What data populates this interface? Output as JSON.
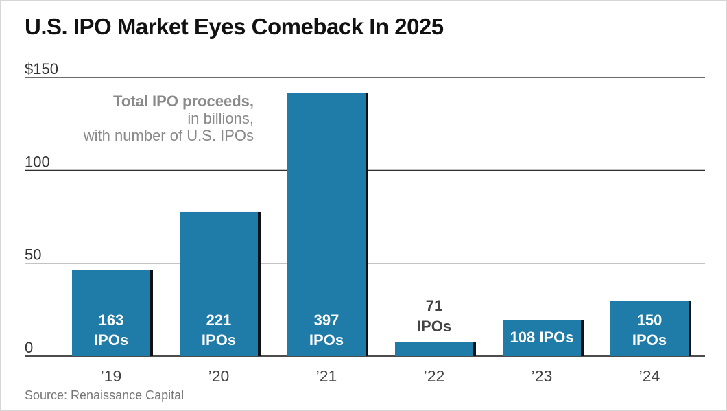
{
  "title": "U.S. IPO Market Eyes Comeback In 2025",
  "source": "Source: Renaissance Capital",
  "chart_data": {
    "type": "bar",
    "title": "U.S. IPO Market Eyes Comeback In 2025",
    "annotation": [
      "Total IPO proceeds,",
      "in billions,",
      "with number of U.S. IPOs"
    ],
    "categories": [
      "’19",
      "’20",
      "’21",
      "’22",
      "’23",
      "’24"
    ],
    "values": [
      46.3,
      77.6,
      141.6,
      7.7,
      19.4,
      29.6
    ],
    "bar_labels": [
      [
        "163",
        "IPOs"
      ],
      [
        "221",
        "IPOs"
      ],
      [
        "397",
        "IPOs"
      ],
      [
        "71",
        "IPOs"
      ],
      [
        "108 IPOs"
      ],
      [
        "150",
        "IPOs"
      ]
    ],
    "label_inside": [
      true,
      true,
      true,
      false,
      true,
      true
    ],
    "y_ticks": [
      "0",
      "50",
      "100",
      "$150"
    ],
    "y_tick_values": [
      0,
      50,
      100,
      150
    ],
    "ylim": [
      0,
      150
    ],
    "bar_color": "#1f7ba7",
    "shadow_color": "#111111",
    "grid": true
  }
}
